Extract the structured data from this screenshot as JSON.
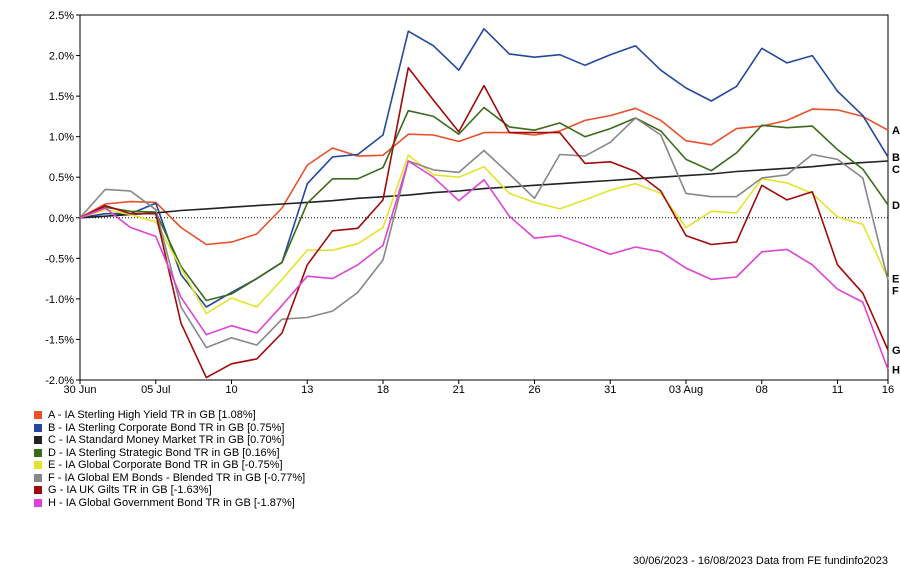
{
  "chart_data": {
    "type": "line",
    "x_ticks": [
      "30 Jun",
      "05 Jul",
      "10",
      "13",
      "18",
      "21",
      "26",
      "31",
      "03 Aug",
      "08",
      "11",
      "16"
    ],
    "y_ticks": [
      "2.5%",
      "2.0%",
      "1.5%",
      "1.0%",
      "0.5%",
      "0.0%",
      "-0.5%",
      "-1.0%",
      "-1.5%",
      "-2.0%"
    ],
    "ylim": [
      -2.0,
      2.5
    ],
    "zero_line": "dotted",
    "series": [
      {
        "letter": "A",
        "name": "A - IA Sterling High Yield TR in GB [1.08%]",
        "color": "#e8502a",
        "values": [
          0,
          0.17,
          0.2,
          0.19,
          -0.12,
          -0.33,
          -0.3,
          -0.2,
          0.12,
          0.65,
          0.86,
          0.76,
          0.77,
          1.03,
          1.02,
          0.94,
          1.05,
          1.05,
          1.02,
          1.07,
          1.2,
          1.26,
          1.35,
          1.2,
          0.95,
          0.9,
          1.1,
          1.13,
          1.2,
          1.34,
          1.33,
          1.25,
          1.08
        ]
      },
      {
        "letter": "B",
        "name": "B - IA Sterling Corporate Bond TR in GB [0.75%]",
        "color": "#2448a0",
        "values": [
          0,
          0.05,
          0.05,
          0.18,
          -0.7,
          -1.1,
          -0.92,
          -0.75,
          -0.55,
          0.42,
          0.75,
          0.78,
          1.02,
          2.3,
          2.12,
          1.82,
          2.33,
          2.02,
          1.98,
          2.01,
          1.88,
          2.01,
          2.12,
          1.82,
          1.6,
          1.44,
          1.62,
          2.09,
          1.91,
          2.0,
          1.56,
          1.26,
          0.75
        ]
      },
      {
        "letter": "C",
        "name": "C - IA Standard Money Market TR in GB [0.70%]",
        "color": "#222222",
        "values": [
          0,
          0.02,
          0.04,
          0.06,
          0.09,
          0.11,
          0.13,
          0.15,
          0.17,
          0.19,
          0.21,
          0.24,
          0.26,
          0.28,
          0.31,
          0.33,
          0.36,
          0.38,
          0.4,
          0.42,
          0.44,
          0.46,
          0.48,
          0.5,
          0.52,
          0.54,
          0.57,
          0.59,
          0.61,
          0.63,
          0.66,
          0.68,
          0.7
        ]
      },
      {
        "letter": "D",
        "name": "D - IA Sterling Strategic Bond TR in GB [0.16%]",
        "color": "#3a6b1a",
        "values": [
          0,
          0.13,
          0.08,
          0.07,
          -0.6,
          -1.02,
          -0.94,
          -0.75,
          -0.55,
          0.18,
          0.48,
          0.48,
          0.62,
          1.32,
          1.25,
          1.03,
          1.36,
          1.12,
          1.08,
          1.17,
          1.0,
          1.1,
          1.23,
          1.07,
          0.72,
          0.58,
          0.8,
          1.14,
          1.11,
          1.13,
          0.84,
          0.6,
          0.16
        ]
      },
      {
        "letter": "E",
        "name": "E - IA Global Corporate Bond TR in GB [-0.75%]",
        "color": "#e3e32e",
        "values": [
          0,
          0.1,
          0.04,
          -0.05,
          -0.62,
          -1.18,
          -0.99,
          -1.1,
          -0.76,
          -0.4,
          -0.4,
          -0.32,
          -0.12,
          0.77,
          0.53,
          0.5,
          0.63,
          0.3,
          0.19,
          0.11,
          0.22,
          0.34,
          0.42,
          0.3,
          -0.12,
          0.08,
          0.06,
          0.48,
          0.43,
          0.3,
          0.01,
          -0.08,
          -0.75
        ]
      },
      {
        "letter": "F",
        "name": "F - IA Global EM Bonds - Blended TR in GB [-0.77%]",
        "color": "#888888",
        "values": [
          0,
          0.35,
          0.33,
          0.1,
          -1.1,
          -1.6,
          -1.48,
          -1.57,
          -1.25,
          -1.23,
          -1.15,
          -0.92,
          -0.52,
          0.7,
          0.59,
          0.56,
          0.83,
          0.54,
          0.24,
          0.78,
          0.76,
          0.93,
          1.23,
          1.02,
          0.3,
          0.26,
          0.26,
          0.49,
          0.53,
          0.78,
          0.72,
          0.49,
          -0.77
        ]
      },
      {
        "letter": "G",
        "name": "G - IA UK Gilts TR in GB [-1.63%]",
        "color": "#a10a0a",
        "values": [
          0,
          0.15,
          0.05,
          0.05,
          -1.3,
          -1.97,
          -1.8,
          -1.74,
          -1.42,
          -0.58,
          -0.16,
          -0.13,
          0.22,
          1.85,
          1.45,
          1.06,
          1.63,
          1.05,
          1.05,
          1.05,
          0.67,
          0.69,
          0.57,
          0.33,
          -0.22,
          -0.33,
          -0.3,
          0.4,
          0.22,
          0.32,
          -0.58,
          -0.93,
          -1.63
        ]
      },
      {
        "letter": "H",
        "name": "H - IA Global Government Bond TR in GB [-1.87%]",
        "color": "#dd44d5",
        "values": [
          0,
          0.12,
          -0.12,
          -0.23,
          -0.98,
          -1.44,
          -1.33,
          -1.42,
          -1.08,
          -0.72,
          -0.75,
          -0.58,
          -0.34,
          0.7,
          0.5,
          0.21,
          0.47,
          0.02,
          -0.25,
          -0.22,
          -0.33,
          -0.45,
          -0.36,
          -0.42,
          -0.62,
          -0.76,
          -0.73,
          -0.42,
          -0.39,
          -0.58,
          -0.88,
          -1.04,
          -1.87
        ]
      }
    ]
  },
  "footer": "30/06/2023 - 16/08/2023 Data from FE fundinfo2023"
}
